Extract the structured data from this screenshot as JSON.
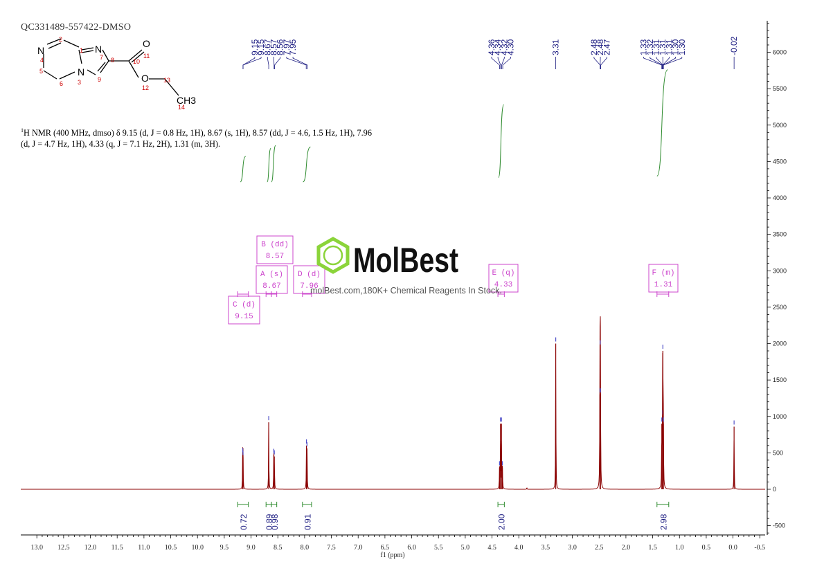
{
  "sample_id": "QC331489-557422-DMSO",
  "nmr_text": {
    "prefix_sup": "1",
    "line1": "H NMR (400 MHz, dmso) δ 9.15 (d, J = 0.8 Hz, 1H), 8.67 (s, 1H), 8.57 (dd, J = 4.6, 1.5 Hz, 1H), 7.96",
    "line2": "(d, J = 4.7 Hz, 1H), 4.33 (q, J = 7.1 Hz, 2H), 1.31 (m, 3H)."
  },
  "watermark": {
    "brand": "MolBest",
    "tagline": "molBest.com,180K+ Chemical Reagents In Stock."
  },
  "structure": {
    "atoms": [
      "N",
      "N",
      "N",
      "O",
      "O",
      "CH3"
    ],
    "numbers": [
      "1",
      "2",
      "3",
      "4",
      "5",
      "6",
      "7",
      "8",
      "9",
      "10",
      "11",
      "12",
      "13",
      "14"
    ]
  },
  "chart_data": {
    "type": "line",
    "title": "",
    "xlabel": "f1 (ppm)",
    "ylabel": "",
    "xlim": [
      13.3,
      -0.6
    ],
    "ylim": [
      -600,
      6400
    ],
    "x_ticks": [
      "13.0",
      "12.5",
      "12.0",
      "11.5",
      "11.0",
      "10.5",
      "10.0",
      "9.5",
      "9.0",
      "8.5",
      "8.0",
      "7.5",
      "7.0",
      "6.5",
      "6.0",
      "5.5",
      "5.0",
      "4.5",
      "4.0",
      "3.5",
      "3.0",
      "2.5",
      "2.0",
      "1.5",
      "1.0",
      "0.5",
      "0.0",
      "-0.5"
    ],
    "y_ticks": [
      "6000",
      "5500",
      "5000",
      "4500",
      "4000",
      "3500",
      "3000",
      "2500",
      "2000",
      "1500",
      "1000",
      "500",
      "0",
      "-500"
    ],
    "colors": {
      "spectrum": "#8b0000",
      "integral": "#2e8b2e",
      "peak_label": "#1a1a80",
      "multiplet_box": "#cc44cc",
      "peak_marker": "#5050c8"
    },
    "peaks": [
      {
        "ppm": 9.155,
        "height": 480
      },
      {
        "ppm": 9.15,
        "height": 440
      },
      {
        "ppm": 8.67,
        "height": 920
      },
      {
        "ppm": 8.575,
        "height": 470
      },
      {
        "ppm": 8.565,
        "height": 450
      },
      {
        "ppm": 7.965,
        "height": 600
      },
      {
        "ppm": 7.955,
        "height": 560
      },
      {
        "ppm": 4.36,
        "height": 300
      },
      {
        "ppm": 4.342,
        "height": 900
      },
      {
        "ppm": 4.324,
        "height": 900
      },
      {
        "ppm": 4.306,
        "height": 300
      },
      {
        "ppm": 3.85,
        "height": 20
      },
      {
        "ppm": 3.31,
        "height": 2000
      },
      {
        "ppm": 2.485,
        "height": 1300
      },
      {
        "ppm": 2.48,
        "height": 1960
      },
      {
        "ppm": 2.475,
        "height": 1300
      },
      {
        "ppm": 1.33,
        "height": 900
      },
      {
        "ppm": 1.315,
        "height": 1000
      },
      {
        "ppm": 1.31,
        "height": 1900
      },
      {
        "ppm": 1.3,
        "height": 900
      },
      {
        "ppm": -0.02,
        "height": 860
      }
    ],
    "peak_labels": [
      {
        "group": [
          9.15,
          9.15,
          8.67,
          8.57,
          8.56,
          7.97,
          7.95
        ],
        "labels": [
          "9.15",
          "9.15",
          "8.67",
          "8.57",
          "8.56",
          "7.97",
          "7.95"
        ]
      },
      {
        "group": [
          4.36,
          4.34,
          4.32,
          4.3
        ],
        "labels": [
          "4.36",
          "4.34",
          "4.32",
          "4.30"
        ]
      },
      {
        "group": [
          3.31
        ],
        "labels": [
          "3.31"
        ]
      },
      {
        "group": [
          2.48,
          2.48,
          2.47
        ],
        "labels": [
          "2.48",
          "2.48",
          "2.47"
        ]
      },
      {
        "group": [
          1.33,
          1.32,
          1.31,
          1.31,
          1.31,
          1.3,
          1.3
        ],
        "labels": [
          "1.33",
          "1.32",
          "1.31",
          "1.31",
          "1.31",
          "1.30",
          "1.30"
        ]
      },
      {
        "group": [
          -0.02
        ],
        "labels": [
          "-0.02"
        ]
      }
    ],
    "multiplets": [
      {
        "id": "C",
        "mult": "d",
        "ppm": "9.15",
        "range": [
          9.25,
          9.05
        ]
      },
      {
        "id": "A",
        "mult": "s",
        "ppm": "8.67",
        "range": [
          8.72,
          8.62
        ]
      },
      {
        "id": "B",
        "mult": "dd",
        "ppm": "8.57",
        "range": [
          8.62,
          8.52
        ]
      },
      {
        "id": "D",
        "mult": "d",
        "ppm": "7.96",
        "range": [
          8.04,
          7.87
        ]
      },
      {
        "id": "E",
        "mult": "q",
        "ppm": "4.33",
        "range": [
          4.39,
          4.27
        ]
      },
      {
        "id": "F",
        "mult": "m",
        "ppm": "1.31",
        "range": [
          1.42,
          1.2
        ]
      }
    ],
    "integrals": [
      {
        "value": "0.72",
        "range": [
          9.25,
          9.05
        ]
      },
      {
        "value": "0.89",
        "range": [
          8.72,
          8.62
        ]
      },
      {
        "value": "0.98",
        "range": [
          8.62,
          8.52
        ]
      },
      {
        "value": "0.91",
        "range": [
          8.04,
          7.87
        ]
      },
      {
        "value": "2.00",
        "range": [
          4.39,
          4.27
        ]
      },
      {
        "value": "2.98",
        "range": [
          1.42,
          1.2
        ]
      }
    ]
  }
}
